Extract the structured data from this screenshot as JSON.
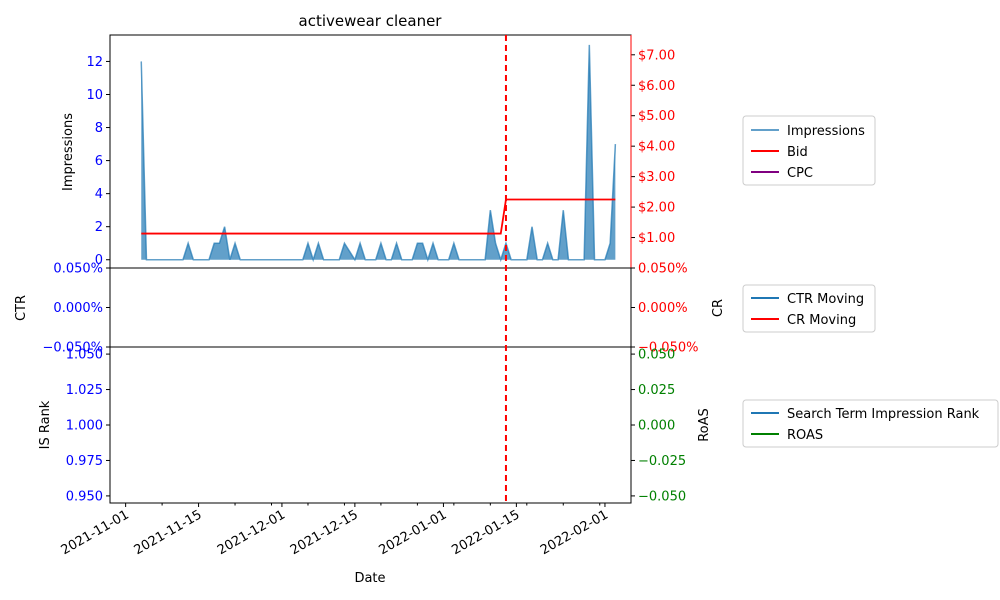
{
  "figure_title": "activewear cleaner",
  "colors": {
    "impressions": "#1f77b4",
    "bid": "#ff0000",
    "cpc": "#800080",
    "ctr": "#1f77b4",
    "cr": "#ff0000",
    "is_rank": "#1f77b4",
    "roas": "#008000",
    "left_ticks": "#0000ff",
    "right_ticks_top": "#ff0000",
    "right_ticks_bottom": "#008000",
    "vline": "#ff0000"
  },
  "chart_data": [
    {
      "type": "area",
      "panel": "top",
      "ylabel": "Impressions",
      "ylim": [
        -0.5,
        13.6
      ],
      "yticks": [
        "0",
        "2",
        "4",
        "6",
        "8",
        "10",
        "12"
      ],
      "y2lim": [
        0,
        7.65
      ],
      "y2ticks": [
        "$1.00",
        "$2.00",
        "$3.00",
        "$4.00",
        "$5.00",
        "$6.00",
        "$7.00"
      ],
      "grid": false,
      "legend_placement": "outside-right",
      "series": [
        {
          "name": "Impressions",
          "axis": "left",
          "points": [
            [
              "2021-11-04",
              12
            ],
            [
              "2021-11-05",
              0
            ],
            [
              "2021-11-12",
              0
            ],
            [
              "2021-11-13",
              1
            ],
            [
              "2021-11-14",
              0
            ],
            [
              "2021-11-17",
              0
            ],
            [
              "2021-11-18",
              1
            ],
            [
              "2021-11-19",
              1
            ],
            [
              "2021-11-20",
              2
            ],
            [
              "2021-11-21",
              0
            ],
            [
              "2021-11-22",
              1
            ],
            [
              "2021-11-23",
              0
            ],
            [
              "2021-12-05",
              0
            ],
            [
              "2021-12-06",
              1
            ],
            [
              "2021-12-07",
              0
            ],
            [
              "2021-12-08",
              1
            ],
            [
              "2021-12-09",
              0
            ],
            [
              "2021-12-12",
              0
            ],
            [
              "2021-12-13",
              1
            ],
            [
              "2021-12-15",
              0
            ],
            [
              "2021-12-16",
              1
            ],
            [
              "2021-12-17",
              0
            ],
            [
              "2021-12-19",
              0
            ],
            [
              "2021-12-20",
              1
            ],
            [
              "2021-12-21",
              0
            ],
            [
              "2021-12-22",
              0
            ],
            [
              "2021-12-23",
              1
            ],
            [
              "2021-12-24",
              0
            ],
            [
              "2021-12-26",
              0
            ],
            [
              "2021-12-27",
              1
            ],
            [
              "2021-12-28",
              1
            ],
            [
              "2021-12-29",
              0
            ],
            [
              "2021-12-30",
              1
            ],
            [
              "2021-12-31",
              0
            ],
            [
              "2022-01-02",
              0
            ],
            [
              "2022-01-03",
              1
            ],
            [
              "2022-01-04",
              0
            ],
            [
              "2022-01-09",
              0
            ],
            [
              "2022-01-10",
              3
            ],
            [
              "2022-01-11",
              1
            ],
            [
              "2022-01-12",
              0
            ],
            [
              "2022-01-13",
              1
            ],
            [
              "2022-01-14",
              0
            ],
            [
              "2022-01-17",
              0
            ],
            [
              "2022-01-18",
              2
            ],
            [
              "2022-01-19",
              0
            ],
            [
              "2022-01-20",
              0
            ],
            [
              "2022-01-21",
              1
            ],
            [
              "2022-01-22",
              0
            ],
            [
              "2022-01-23",
              0
            ],
            [
              "2022-01-24",
              3
            ],
            [
              "2022-01-25",
              0
            ],
            [
              "2022-01-28",
              0
            ],
            [
              "2022-01-29",
              13
            ],
            [
              "2022-01-30",
              0
            ],
            [
              "2022-02-01",
              0
            ],
            [
              "2022-02-02",
              1
            ],
            [
              "2022-02-03",
              7
            ]
          ]
        },
        {
          "name": "Bid",
          "axis": "right",
          "points": [
            [
              "2021-11-04",
              1.13
            ],
            [
              "2022-01-12",
              1.13
            ],
            [
              "2022-01-13",
              2.25
            ],
            [
              "2022-02-03",
              2.25
            ]
          ]
        },
        {
          "name": "CPC",
          "axis": "right",
          "points": []
        }
      ]
    },
    {
      "type": "line",
      "panel": "middle",
      "ylabel": "CTR",
      "y2label": "CR",
      "ylim": [
        -0.05,
        0.05
      ],
      "yticks": [
        "0.050%",
        "0.000%",
        "−0.050%"
      ],
      "y2ticks": [
        "0.050%",
        "0.000%",
        "−0.050%"
      ],
      "legend_placement": "outside-right",
      "series": [
        {
          "name": "CTR Moving",
          "points": []
        },
        {
          "name": "CR Moving",
          "points": []
        }
      ]
    },
    {
      "type": "line",
      "panel": "bottom",
      "ylabel": "IS Rank",
      "y2label": "RoAS",
      "xlabel": "Date",
      "ylim": [
        0.945,
        1.055
      ],
      "yticks": [
        "1.050",
        "1.025",
        "1.000",
        "0.975",
        "0.950"
      ],
      "y2ticks": [
        "0.050",
        "0.025",
        "0.000",
        "−0.025",
        "−0.050"
      ],
      "xticks": [
        "2021-11-01",
        "2021-11-15",
        "2021-12-01",
        "2021-12-15",
        "2022-01-01",
        "2022-01-15",
        "2022-02-01"
      ],
      "legend_placement": "outside-right",
      "series": [
        {
          "name": "Search Term Impression Rank",
          "points": []
        },
        {
          "name": "ROAS",
          "points": []
        }
      ]
    }
  ],
  "vline_date": "2022-01-13",
  "x_range": [
    "2021-10-29",
    "2022-02-06"
  ]
}
